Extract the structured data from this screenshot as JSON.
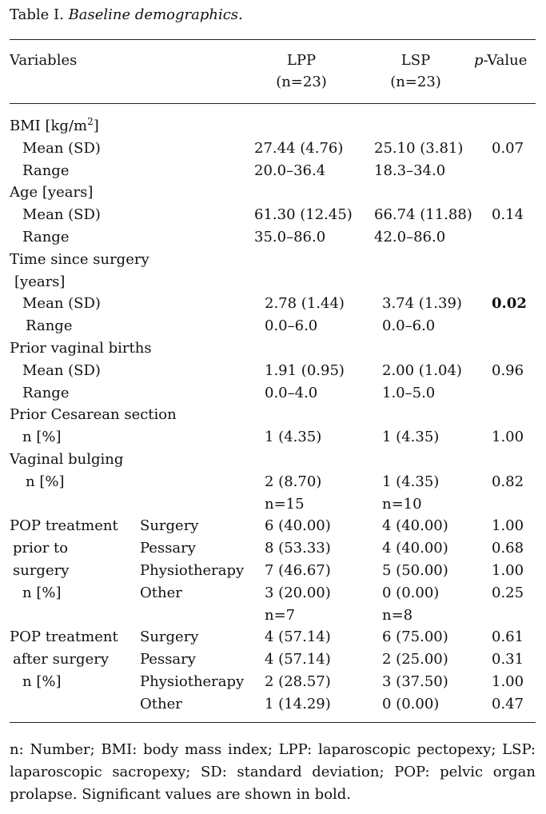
{
  "caption": {
    "label": "Table I.",
    "title": "Baseline demographics."
  },
  "header": {
    "variables": "Variables",
    "lpp": "LPP",
    "lpp_n": "(n=23)",
    "lsp": "LSP",
    "lsp_n": "(n=23)",
    "pvalue_italic": "p",
    "pvalue_rest": "-Value"
  },
  "rows": [
    {
      "c1": "BMI [kg/m",
      "sup": "2",
      "c1_after": "]"
    },
    {
      "c1": "Mean (SD)",
      "lpp": "27.44 (4.76)",
      "lsp": "25.10 (3.81)",
      "p": "0.07"
    },
    {
      "c1": "Range",
      "lpp": "20.0–36.4",
      "lsp": "18.3–34.0"
    },
    {
      "c1": "Age [years]"
    },
    {
      "c1": "Mean (SD)",
      "lpp": "61.30 (12.45)",
      "lsp": "66.74 (11.88)",
      "p": "0.14"
    },
    {
      "c1": "Range",
      "lpp": "35.0–86.0",
      "lsp": "42.0–86.0"
    },
    {
      "c1": "Time since surgery"
    },
    {
      "c1": "[years]"
    },
    {
      "c1": "Mean (SD)",
      "lpp": "2.78 (1.44)",
      "lsp": "3.74 (1.39)",
      "p": "0.02",
      "bold": true
    },
    {
      "c1": "Range",
      "lpp": "0.0–6.0",
      "lsp": "0.0–6.0"
    },
    {
      "c1": "Prior vaginal births"
    },
    {
      "c1": "Mean (SD)",
      "lpp": "1.91 (0.95)",
      "lsp": "2.00 (1.04)",
      "p": "0.96"
    },
    {
      "c1": "Range",
      "lpp": "0.0–4.0",
      "lsp": "1.0–5.0"
    },
    {
      "c1": "Prior Cesarean section"
    },
    {
      "c1": "n [%]",
      "lpp": "1 (4.35)",
      "lsp": "1 (4.35)",
      "p": "1.00"
    },
    {
      "c1": "Vaginal bulging"
    },
    {
      "c1": "n [%]",
      "lpp": "2 (8.70)",
      "lsp": "1 (4.35)",
      "p": "0.82"
    },
    {
      "lpp": "n=15",
      "lsp": "n=10"
    },
    {
      "c1": "POP treatment",
      "c2": "Surgery",
      "lpp": "6 (40.00)",
      "lsp": "4 (40.00)",
      "p": "1.00"
    },
    {
      "c1": "prior to",
      "c2": "Pessary",
      "lpp": "8 (53.33)",
      "lsp": "4 (40.00)",
      "p": "0.68"
    },
    {
      "c1": "surgery",
      "c2": "Physiotherapy",
      "lpp": "7 (46.67)",
      "lsp": "5 (50.00)",
      "p": "1.00"
    },
    {
      "c1": "n [%]",
      "c2": "Other",
      "lpp": "3 (20.00)",
      "lsp": "0 (0.00)",
      "p": "0.25"
    },
    {
      "lpp": "n=7",
      "lsp": "n=8"
    },
    {
      "c1": "POP treatment",
      "c2": "Surgery",
      "lpp": "4 (57.14)",
      "lsp": "6 (75.00)",
      "p": "0.61"
    },
    {
      "c1": "after surgery",
      "c2": "Pessary",
      "lpp": "4 (57.14)",
      "lsp": "2 (25.00)",
      "p": "0.31"
    },
    {
      "c1": "n [%]",
      "c2": "Physiotherapy",
      "lpp": "2 (28.57)",
      "lsp": "3 (37.50)",
      "p": "1.00"
    },
    {
      "c2": "Other",
      "lpp": "1 (14.29)",
      "lsp": "0 (0.00)",
      "p": "0.47"
    }
  ],
  "footnote": "n: Number; BMI: body mass index; LPP: laparoscopic pectopexy; LSP: laparoscopic sacropexy; SD: standard deviation; POP: pelvic organ prolapse. Significant values are shown in bold."
}
